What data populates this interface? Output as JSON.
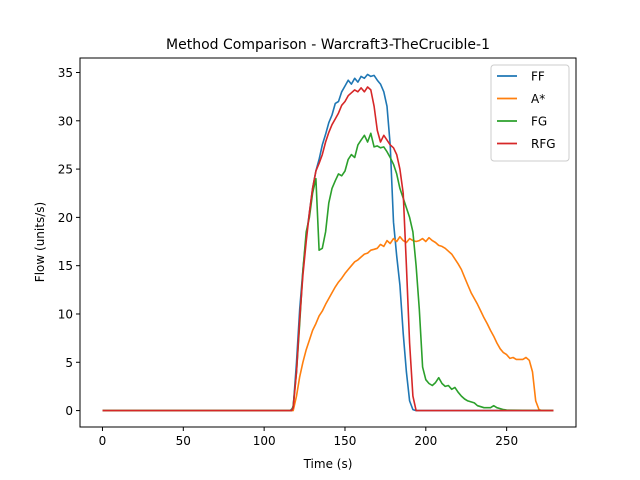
{
  "chart_data": {
    "type": "line",
    "title": "Method Comparison - Warcraft3-TheCrucible-1",
    "xlabel": "Time (s)",
    "ylabel": "Flow (units/s)",
    "xlim": [
      -13.9,
      292.9
    ],
    "ylim": [
      -1.7,
      36.5
    ],
    "xticks": [
      0,
      50,
      100,
      150,
      200,
      250
    ],
    "yticks": [
      0,
      5,
      10,
      15,
      20,
      25,
      30,
      35
    ],
    "grid": false,
    "legend_position": "top-right",
    "series": [
      {
        "name": "FF",
        "color": "#1f77b4",
        "x": [
          0,
          116,
          118,
          120,
          122,
          124,
          126,
          128,
          130,
          132,
          134,
          136,
          138,
          140,
          142,
          144,
          146,
          148,
          150,
          152,
          154,
          156,
          158,
          160,
          162,
          164,
          166,
          168,
          170,
          172,
          174,
          176,
          178,
          180,
          182,
          184,
          186,
          188,
          190,
          192,
          194,
          279
        ],
        "y": [
          0,
          0,
          0.3,
          5.0,
          10.5,
          14.5,
          18.0,
          20.5,
          23.0,
          24.8,
          26.0,
          27.5,
          28.6,
          29.8,
          30.6,
          31.8,
          32.0,
          33.0,
          33.6,
          34.2,
          33.8,
          34.4,
          34.0,
          34.6,
          34.4,
          34.8,
          34.6,
          34.7,
          34.2,
          33.8,
          33.0,
          31.5,
          27.5,
          19.5,
          16.0,
          13.0,
          8.0,
          4.0,
          1.0,
          0.1,
          0,
          0
        ]
      },
      {
        "name": "A*",
        "color": "#ff7f0e",
        "x": [
          0,
          118,
          120,
          122,
          124,
          126,
          128,
          130,
          132,
          134,
          136,
          138,
          140,
          142,
          144,
          146,
          148,
          150,
          152,
          154,
          156,
          158,
          160,
          162,
          164,
          166,
          168,
          170,
          172,
          174,
          176,
          178,
          180,
          182,
          184,
          186,
          188,
          190,
          192,
          194,
          196,
          198,
          200,
          202,
          204,
          206,
          208,
          210,
          212,
          214,
          216,
          218,
          220,
          222,
          224,
          226,
          228,
          230,
          232,
          234,
          236,
          238,
          240,
          242,
          244,
          246,
          248,
          250,
          252,
          254,
          256,
          258,
          260,
          262,
          264,
          266,
          268,
          270,
          272,
          279
        ],
        "y": [
          0,
          0,
          1.5,
          3.5,
          5.0,
          6.3,
          7.3,
          8.3,
          9.0,
          9.8,
          10.3,
          11.0,
          11.6,
          12.2,
          12.8,
          13.3,
          13.7,
          14.2,
          14.6,
          15.0,
          15.4,
          15.6,
          15.9,
          16.2,
          16.3,
          16.6,
          16.7,
          16.8,
          17.2,
          17.0,
          17.6,
          17.3,
          17.8,
          17.5,
          18.0,
          17.6,
          17.4,
          17.8,
          17.6,
          17.5,
          17.6,
          17.8,
          17.5,
          17.9,
          17.6,
          17.4,
          17.1,
          17.0,
          16.8,
          16.5,
          16.2,
          15.7,
          15.2,
          14.6,
          13.8,
          13.0,
          12.2,
          11.6,
          11.0,
          10.3,
          9.6,
          9.0,
          8.3,
          7.7,
          7.0,
          6.4,
          6.0,
          5.8,
          5.4,
          5.5,
          5.3,
          5.3,
          5.3,
          5.5,
          5.2,
          4.0,
          1.0,
          0.1,
          0,
          0
        ]
      },
      {
        "name": "FG",
        "color": "#2ca02c",
        "x": [
          0,
          117,
          118,
          120,
          122,
          124,
          126,
          128,
          130,
          132,
          134,
          136,
          138,
          140,
          142,
          144,
          146,
          148,
          150,
          152,
          154,
          156,
          158,
          160,
          162,
          164,
          166,
          168,
          170,
          172,
          174,
          176,
          178,
          180,
          182,
          184,
          186,
          188,
          190,
          192,
          194,
          196,
          198,
          200,
          202,
          204,
          206,
          208,
          210,
          212,
          214,
          216,
          218,
          220,
          222,
          224,
          226,
          228,
          230,
          232,
          234,
          236,
          238,
          240,
          242,
          244,
          246,
          248,
          250,
          279
        ],
        "y": [
          0,
          0,
          0.5,
          4.0,
          9.0,
          14.5,
          18.5,
          20.0,
          22.5,
          24.0,
          16.6,
          16.8,
          18.5,
          21.5,
          23.0,
          23.8,
          24.5,
          24.3,
          24.8,
          26.0,
          26.5,
          26.2,
          27.5,
          28.0,
          28.5,
          27.8,
          28.7,
          27.3,
          27.4,
          27.2,
          27.3,
          26.8,
          26.2,
          25.5,
          24.5,
          23.0,
          22.0,
          21.0,
          20.0,
          18.5,
          15.0,
          10.5,
          4.5,
          3.2,
          2.8,
          2.6,
          2.9,
          3.4,
          2.8,
          2.5,
          2.6,
          2.2,
          2.4,
          1.9,
          1.5,
          1.2,
          1.0,
          0.9,
          0.8,
          0.5,
          0.4,
          0.3,
          0.3,
          0.3,
          0.5,
          0.3,
          0.2,
          0.1,
          0.05,
          0
        ]
      },
      {
        "name": "RFG",
        "color": "#d62728",
        "x": [
          0,
          117,
          118,
          120,
          122,
          124,
          126,
          128,
          130,
          132,
          134,
          136,
          138,
          140,
          142,
          144,
          146,
          148,
          150,
          152,
          154,
          156,
          158,
          160,
          162,
          164,
          166,
          168,
          170,
          172,
          174,
          176,
          178,
          180,
          182,
          184,
          186,
          188,
          190,
          192,
          194,
          279
        ],
        "y": [
          0,
          0,
          0.3,
          4.0,
          9.5,
          14.0,
          17.5,
          20.5,
          23.0,
          24.8,
          25.6,
          26.5,
          27.8,
          28.8,
          29.6,
          30.2,
          30.8,
          31.6,
          32.0,
          32.6,
          32.9,
          33.2,
          33.0,
          33.4,
          33.0,
          33.5,
          33.2,
          31.5,
          29.0,
          27.8,
          28.5,
          28.0,
          27.5,
          27.2,
          26.5,
          25.0,
          22.5,
          15.0,
          7.0,
          1.5,
          0,
          0
        ]
      }
    ]
  }
}
